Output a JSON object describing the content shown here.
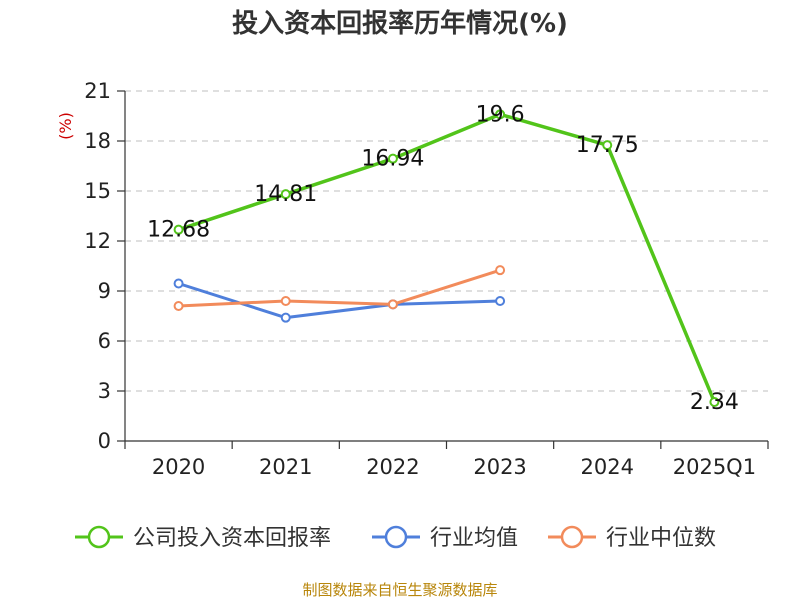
{
  "colors": {
    "company": "#52c41a",
    "industry_avg": "#4f7fdb",
    "industry_median": "#f28b5b",
    "grid": "#cccccc",
    "axis": "#333333",
    "unit": "#cc0000",
    "source": "#b8860b"
  },
  "chart_data": {
    "type": "line",
    "title": "投入资本回报率历年情况(%)",
    "ylabel": "(%)",
    "xlabel": "",
    "categories": [
      "2020",
      "2021",
      "2022",
      "2023",
      "2024",
      "2025Q1"
    ],
    "ylim": [
      0,
      21
    ],
    "yticks": [
      0,
      3,
      6,
      9,
      12,
      15,
      18,
      21
    ],
    "grid": true,
    "legend_position": "bottom",
    "series": [
      {
        "name": "公司投入资本回报率",
        "color_key": "company",
        "values": [
          12.68,
          14.81,
          16.94,
          19.6,
          17.75,
          2.34
        ],
        "labels": [
          "12.68",
          "14.81",
          "16.94",
          "19.6",
          "17.75",
          "2.34"
        ]
      },
      {
        "name": "行业均值",
        "color_key": "industry_avg",
        "values": [
          9.45,
          7.4,
          8.2,
          8.4,
          null,
          null
        ]
      },
      {
        "name": "行业中位数",
        "color_key": "industry_median",
        "values": [
          8.1,
          8.4,
          8.2,
          10.25,
          null,
          null
        ]
      }
    ]
  },
  "source_text": "制图数据来自恒生聚源数据库"
}
